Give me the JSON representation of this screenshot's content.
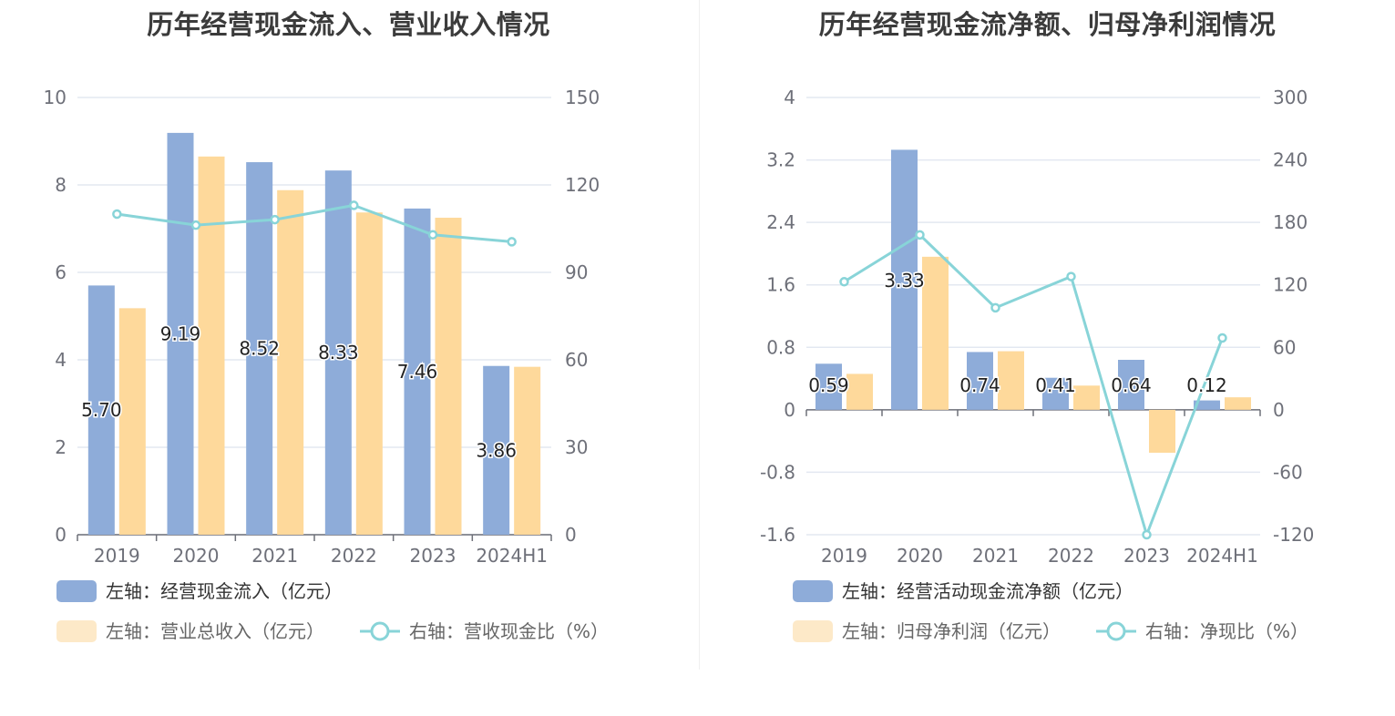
{
  "colors": {
    "bar_primary": "#8eacd9",
    "bar_secondary": "#fed99b",
    "bar_secondary_legend": "#fde9c8",
    "line": "#88d4d8",
    "grid": "#e3e8f1",
    "axis": "#6e7079"
  },
  "chart_data": [
    {
      "type": "bar",
      "title": "历年经营现金流入、营业收入情况",
      "categories": [
        "2019",
        "2020",
        "2021",
        "2022",
        "2023",
        "2024H1"
      ],
      "left_axis": {
        "min": 0,
        "max": 10,
        "ticks": [
          "0",
          "2",
          "4",
          "6",
          "8",
          "10"
        ]
      },
      "right_axis": {
        "min": 0,
        "max": 150,
        "ticks": [
          "0",
          "30",
          "60",
          "90",
          "120",
          "150"
        ]
      },
      "series": [
        {
          "name": "左轴：经营现金流入（亿元）",
          "kind": "bar",
          "axis": "left",
          "values": [
            5.7,
            9.19,
            8.52,
            8.33,
            7.46,
            3.86
          ],
          "labels": [
            "5.70",
            "9.19",
            "8.52",
            "8.33",
            "7.46",
            "3.86"
          ]
        },
        {
          "name": "左轴：营业总收入（亿元）",
          "kind": "bar",
          "axis": "left",
          "values": [
            5.18,
            8.65,
            7.88,
            7.37,
            7.25,
            3.84
          ]
        },
        {
          "name": "右轴：营收现金比（%）",
          "kind": "line",
          "axis": "right",
          "values": [
            110.0,
            106.2,
            108.1,
            113.0,
            102.9,
            100.5
          ]
        }
      ],
      "grid": true,
      "legend_position": "bottom"
    },
    {
      "type": "bar",
      "title": "历年经营现金流净额、归母净利润情况",
      "categories": [
        "2019",
        "2020",
        "2021",
        "2022",
        "2023",
        "2024H1"
      ],
      "left_axis": {
        "min": -1.6,
        "max": 4,
        "ticks": [
          "-1.6",
          "-0.8",
          "0",
          "0.8",
          "1.6",
          "2.4",
          "3.2",
          "4"
        ]
      },
      "right_axis": {
        "min": -120,
        "max": 300,
        "ticks": [
          "-120",
          "-60",
          "0",
          "60",
          "120",
          "180",
          "240",
          "300"
        ]
      },
      "series": [
        {
          "name": "左轴：经营活动现金流净额（亿元）",
          "kind": "bar",
          "axis": "left",
          "values": [
            0.59,
            3.33,
            0.74,
            0.41,
            0.64,
            0.12
          ],
          "labels": [
            "0.59",
            "3.33",
            "0.74",
            "0.41",
            "0.64",
            "0.12"
          ]
        },
        {
          "name": "左轴：归母净利润（亿元）",
          "kind": "bar",
          "axis": "left",
          "values": [
            0.46,
            1.96,
            0.75,
            0.31,
            -0.55,
            0.16
          ]
        },
        {
          "name": "右轴：净现比（%）",
          "kind": "line",
          "axis": "right",
          "values": [
            123,
            168,
            98,
            128,
            -120,
            69
          ]
        }
      ],
      "grid": true,
      "legend_position": "bottom"
    }
  ]
}
